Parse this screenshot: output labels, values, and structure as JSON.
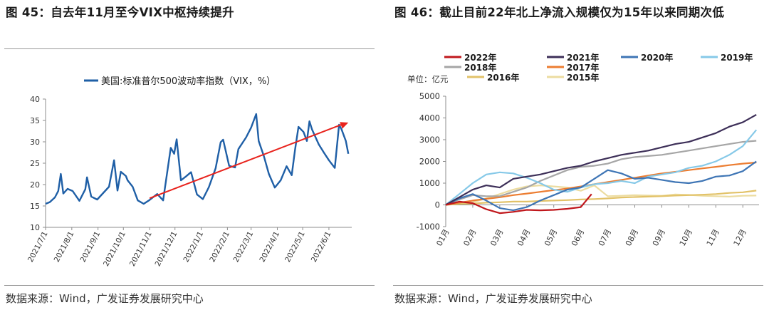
{
  "left_panel": {
    "title": "图 45：自去年11月至今VIX中枢持续提升",
    "source": "数据来源：Wind，广发证券发展研究中心"
  },
  "right_panel": {
    "title": "图 46：截止目前22年北上净流入规模仅为15年以来同期次低",
    "source": "数据来源：Wind，广发证券发展研究中心",
    "unit_label": "单位：亿元"
  },
  "chart_data": [
    {
      "type": "line",
      "legend": [
        "美国:标准普尔500波动率指数（VIX，%）"
      ],
      "legend_position": "top-center",
      "ylim": [
        10,
        40
      ],
      "yticks": [
        10,
        15,
        20,
        25,
        30,
        35,
        40
      ],
      "xticks": [
        "2021/7/1",
        "2021/8/1",
        "2021/9/1",
        "2021/10/1",
        "2021/11/1",
        "2021/12/1",
        "2022/1/1",
        "2022/2/1",
        "2022/3/1",
        "2022/4/1",
        "2022/5/1",
        "2022/6/1"
      ],
      "series": [
        {
          "name": "美国:标准普尔500波动率指数（VIX，%）",
          "color": "#1f5fa6",
          "x": [
            "2021-07-01",
            "2021-07-06",
            "2021-07-12",
            "2021-07-16",
            "2021-07-19",
            "2021-07-22",
            "2021-07-27",
            "2021-08-02",
            "2021-08-10",
            "2021-08-17",
            "2021-08-19",
            "2021-08-24",
            "2021-08-31",
            "2021-09-07",
            "2021-09-14",
            "2021-09-20",
            "2021-09-24",
            "2021-09-28",
            "2021-10-04",
            "2021-10-06",
            "2021-10-12",
            "2021-10-18",
            "2021-10-25",
            "2021-11-01",
            "2021-11-10",
            "2021-11-17",
            "2021-11-26",
            "2021-11-30",
            "2021-12-03",
            "2021-12-08",
            "2021-12-14",
            "2021-12-20",
            "2021-12-27",
            "2022-01-03",
            "2022-01-10",
            "2022-01-18",
            "2022-01-24",
            "2022-01-27",
            "2022-02-03",
            "2022-02-10",
            "2022-02-14",
            "2022-02-23",
            "2022-03-01",
            "2022-03-07",
            "2022-03-10",
            "2022-03-16",
            "2022-03-22",
            "2022-03-29",
            "2022-04-05",
            "2022-04-12",
            "2022-04-18",
            "2022-04-22",
            "2022-04-26",
            "2022-05-02",
            "2022-05-06",
            "2022-05-09",
            "2022-05-12",
            "2022-05-20",
            "2022-05-26",
            "2022-06-01",
            "2022-06-08",
            "2022-06-13",
            "2022-06-16",
            "2022-06-21",
            "2022-06-24"
          ],
          "values": [
            15.5,
            15.9,
            17.0,
            18.5,
            22.5,
            17.9,
            19.0,
            18.5,
            16.2,
            18.9,
            21.7,
            17.2,
            16.5,
            18.0,
            19.5,
            25.7,
            18.6,
            23.0,
            22.0,
            21.0,
            19.5,
            16.3,
            15.5,
            16.4,
            17.8,
            16.3,
            28.6,
            27.2,
            30.6,
            21.0,
            21.9,
            22.9,
            17.7,
            16.6,
            19.4,
            23.8,
            29.9,
            30.5,
            24.4,
            24.0,
            28.3,
            31.0,
            33.3,
            36.5,
            30.2,
            26.7,
            22.5,
            19.3,
            21.0,
            24.3,
            22.2,
            28.2,
            33.5,
            32.3,
            30.2,
            34.8,
            32.9,
            29.4,
            27.5,
            25.7,
            23.9,
            34.0,
            32.9,
            30.2,
            27.2
          ],
          "trend_arrow": {
            "from": [
              "2021-11-01",
              16.8
            ],
            "to": [
              "2022-06-24",
              34.5
            ],
            "color": "#e8231d"
          }
        }
      ]
    },
    {
      "type": "line",
      "unit": "单位：亿元",
      "legend_position": "top",
      "ylim": [
        -1000,
        5000
      ],
      "yticks": [
        -1000,
        0,
        1000,
        2000,
        3000,
        4000,
        5000
      ],
      "xticks": [
        "01月",
        "02月",
        "03月",
        "04月",
        "05月",
        "06月",
        "07月",
        "08月",
        "09月",
        "10月",
        "11月",
        "12月"
      ],
      "series": [
        {
          "name": "2022年",
          "color": "#c0171c",
          "x": [
            1,
            1.5,
            2,
            2.5,
            3,
            3.5,
            4,
            4.5,
            5,
            5.5,
            6,
            6.4
          ],
          "values": [
            0,
            150,
            80,
            -200,
            -380,
            -320,
            -230,
            -250,
            -230,
            -180,
            -100,
            500
          ]
        },
        {
          "name": "2021年",
          "color": "#3d2f58",
          "x": [
            1,
            1.5,
            2,
            2.5,
            3,
            3.5,
            4,
            4.5,
            5,
            5.5,
            6,
            6.5,
            7,
            7.5,
            8,
            8.5,
            9,
            9.5,
            10,
            10.5,
            11,
            11.5,
            12,
            12.5
          ],
          "values": [
            0,
            350,
            700,
            900,
            800,
            1200,
            1300,
            1400,
            1550,
            1700,
            1800,
            2000,
            2150,
            2300,
            2400,
            2500,
            2650,
            2800,
            2900,
            3100,
            3300,
            3600,
            3800,
            4150
          ]
        },
        {
          "name": "2020年",
          "color": "#3e75b5",
          "x": [
            1,
            1.5,
            2,
            2.5,
            3,
            3.5,
            4,
            4.5,
            5,
            5.5,
            6,
            6.5,
            7,
            7.5,
            8,
            8.5,
            9,
            9.5,
            10,
            10.5,
            11,
            11.5,
            12,
            12.5
          ],
          "values": [
            0,
            300,
            500,
            200,
            -150,
            -250,
            -100,
            200,
            450,
            700,
            800,
            1200,
            1600,
            1450,
            1200,
            1250,
            1150,
            1050,
            1000,
            1100,
            1300,
            1350,
            1550,
            2000
          ]
        },
        {
          "name": "2019年",
          "color": "#86c9e8",
          "x": [
            1,
            1.5,
            2,
            2.5,
            3,
            3.5,
            4,
            4.5,
            5,
            5.5,
            6,
            6.5,
            7,
            7.5,
            8,
            8.5,
            9,
            9.5,
            10,
            10.5,
            11,
            11.5,
            12,
            12.5
          ],
          "values": [
            0,
            500,
            1000,
            1400,
            1500,
            1450,
            1250,
            1000,
            700,
            600,
            800,
            950,
            1000,
            1100,
            1000,
            1300,
            1400,
            1500,
            1700,
            1800,
            2000,
            2300,
            2700,
            3450
          ]
        },
        {
          "name": "2018年",
          "color": "#a6a6a6",
          "x": [
            1,
            1.5,
            2,
            2.5,
            3,
            3.5,
            4,
            4.5,
            5,
            5.5,
            6,
            6.5,
            7,
            7.5,
            8,
            8.5,
            9,
            9.5,
            10,
            10.5,
            11,
            11.5,
            12,
            12.5
          ],
          "values": [
            0,
            250,
            450,
            400,
            400,
            600,
            800,
            1100,
            1350,
            1600,
            1750,
            1800,
            1900,
            2100,
            2200,
            2250,
            2300,
            2400,
            2500,
            2600,
            2700,
            2800,
            2900,
            2950
          ]
        },
        {
          "name": "2017年",
          "color": "#ec7d31",
          "x": [
            1,
            1.5,
            2,
            2.5,
            3,
            3.5,
            4,
            4.5,
            5,
            5.5,
            6,
            6.5,
            7,
            7.5,
            8,
            8.5,
            9,
            9.5,
            10,
            10.5,
            11,
            11.5,
            12,
            12.5
          ],
          "values": [
            0,
            100,
            200,
            280,
            350,
            450,
            520,
            600,
            680,
            750,
            850,
            950,
            1050,
            1150,
            1250,
            1350,
            1450,
            1520,
            1600,
            1680,
            1750,
            1830,
            1900,
            1950
          ]
        },
        {
          "name": "2016年",
          "color": "#e2c268",
          "x": [
            1,
            1.5,
            2,
            2.5,
            3,
            3.5,
            4,
            4.5,
            5,
            5.5,
            6,
            6.5,
            7,
            7.5,
            8,
            8.5,
            9,
            9.5,
            10,
            10.5,
            11,
            11.5,
            12,
            12.5
          ],
          "values": [
            0,
            50,
            60,
            100,
            120,
            150,
            150,
            180,
            200,
            220,
            250,
            270,
            300,
            340,
            360,
            380,
            400,
            430,
            450,
            470,
            500,
            550,
            580,
            660
          ]
        },
        {
          "name": "2015年",
          "color": "#ecdca0",
          "x": [
            1,
            1.5,
            2,
            2.5,
            3,
            3.5,
            4,
            4.5,
            5,
            5.5,
            6,
            6.5,
            7,
            7.5,
            8,
            8.5,
            9,
            9.5,
            10,
            10.5,
            11,
            11.5,
            12,
            12.5
          ],
          "values": [
            0,
            60,
            120,
            300,
            500,
            700,
            850,
            900,
            850,
            800,
            650,
            900,
            400,
            420,
            450,
            430,
            420,
            480,
            460,
            420,
            400,
            380,
            420,
            430
          ]
        }
      ]
    }
  ]
}
